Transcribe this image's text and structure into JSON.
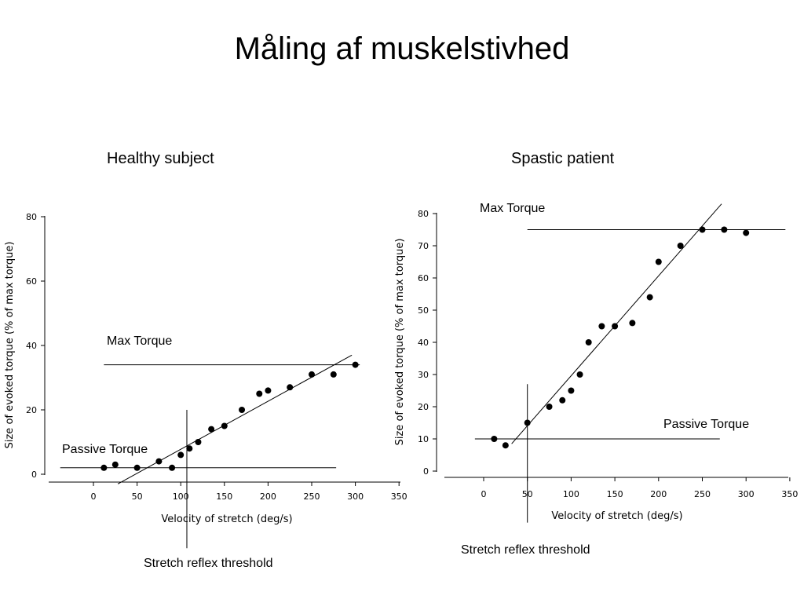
{
  "title": "Måling af muskelstivhed",
  "chart_data": [
    {
      "type": "scatter",
      "title": "Healthy subject",
      "xlabel": "Velocity of stretch (deg/s)",
      "ylabel": "Size of evoked torque (% of max torque)",
      "xlim": [
        -40,
        350
      ],
      "ylim": [
        0,
        80
      ],
      "xticks": [
        0,
        50,
        100,
        150,
        200,
        250,
        300,
        350
      ],
      "yticks": [
        0,
        20,
        40,
        60,
        80
      ],
      "x": [
        12,
        25,
        50,
        75,
        90,
        100,
        110,
        120,
        135,
        150,
        170,
        190,
        200,
        225,
        250,
        275,
        300
      ],
      "y": [
        2,
        3,
        2,
        4,
        2,
        6,
        8,
        10,
        14,
        15,
        20,
        25,
        26,
        27,
        31,
        31,
        34
      ],
      "max_torque": {
        "label": "Max Torque",
        "y": 34,
        "x_range": [
          12,
          305
        ]
      },
      "passive_torque": {
        "label": "Passive Torque",
        "y": 2,
        "x_range": [
          -38,
          278
        ]
      },
      "fit_line": {
        "x": [
          28,
          296
        ],
        "y": [
          -3,
          37
        ]
      },
      "stretch_reflex_threshold": {
        "label": "Stretch reflex threshold",
        "x": 107,
        "y_range": [
          -23,
          20
        ]
      },
      "grid": false
    },
    {
      "type": "scatter",
      "title": "Spastic patient",
      "xlabel": "Velocity of stretch (deg/s)",
      "ylabel": "Size of evoked torque (% of max torque)",
      "xlim": [
        -40,
        350
      ],
      "ylim": [
        0,
        80
      ],
      "xticks": [
        0,
        50,
        100,
        150,
        200,
        250,
        300,
        350
      ],
      "yticks": [
        0,
        10,
        20,
        30,
        40,
        50,
        60,
        70,
        80
      ],
      "x": [
        12,
        25,
        50,
        75,
        90,
        100,
        110,
        120,
        135,
        150,
        170,
        190,
        200,
        225,
        250,
        275,
        300
      ],
      "y": [
        10,
        8,
        15,
        20,
        22,
        25,
        30,
        40,
        45,
        45,
        46,
        54,
        65,
        70,
        75,
        75,
        74
      ],
      "max_torque": {
        "label": "Max Torque",
        "y": 75,
        "x_range": [
          50,
          345
        ]
      },
      "passive_torque": {
        "label": "Passive Torque",
        "y": 10,
        "x_range": [
          -10,
          270
        ]
      },
      "fit_line": {
        "x": [
          32,
          272
        ],
        "y": [
          8.5,
          83
        ]
      },
      "stretch_reflex_threshold": {
        "label": "Stretch reflex threshold",
        "x": 50,
        "y_range": [
          -16,
          27
        ]
      },
      "grid": false
    }
  ]
}
